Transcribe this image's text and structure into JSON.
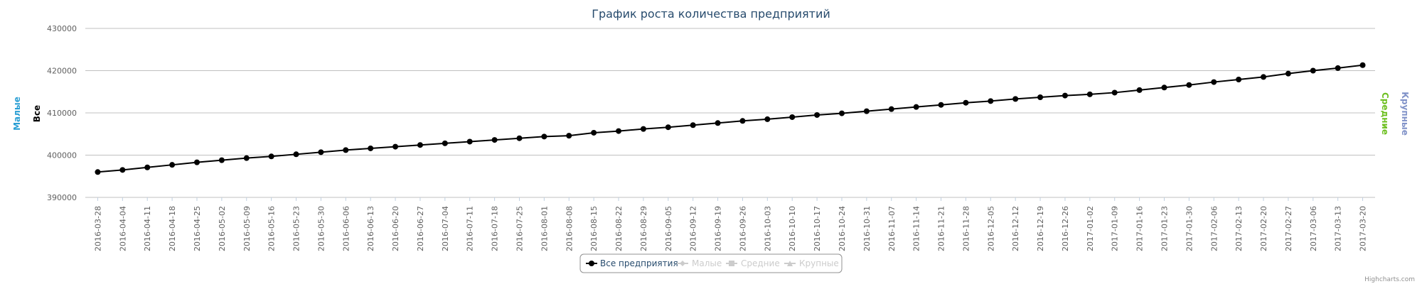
{
  "chart_data": {
    "type": "line",
    "title": "График роста количества предприятий",
    "y_axis_titles": {
      "left": [
        {
          "label": "Малые",
          "color": "#2b9fd4"
        },
        {
          "label": "Все",
          "color": "#000000"
        }
      ],
      "right": [
        {
          "label": "Средние",
          "color": "#6cbf1f"
        },
        {
          "label": "Крупные",
          "color": "#8092c8"
        }
      ]
    },
    "y_ticks": [
      "390000",
      "400000",
      "410000",
      "420000",
      "430000"
    ],
    "ylim": [
      390000,
      430000
    ],
    "grid": true,
    "categories": [
      "2016-03-28",
      "2016-04-04",
      "2016-04-11",
      "2016-04-18",
      "2016-04-25",
      "2016-05-02",
      "2016-05-09",
      "2016-05-16",
      "2016-05-23",
      "2016-05-30",
      "2016-06-06",
      "2016-06-13",
      "2016-06-20",
      "2016-06-27",
      "2016-07-04",
      "2016-07-11",
      "2016-07-18",
      "2016-07-25",
      "2016-08-01",
      "2016-08-08",
      "2016-08-15",
      "2016-08-22",
      "2016-08-29",
      "2016-09-05",
      "2016-09-12",
      "2016-09-19",
      "2016-09-26",
      "2016-10-03",
      "2016-10-10",
      "2016-10-17",
      "2016-10-24",
      "2016-10-31",
      "2016-11-07",
      "2016-11-14",
      "2016-11-21",
      "2016-11-28",
      "2016-12-05",
      "2016-12-12",
      "2016-12-19",
      "2016-12-26",
      "2017-01-02",
      "2017-01-09",
      "2017-01-16",
      "2017-01-23",
      "2017-01-30",
      "2017-02-06",
      "2017-02-13",
      "2017-02-20",
      "2017-02-27",
      "2017-03-06",
      "2017-03-13",
      "2017-03-20"
    ],
    "series": [
      {
        "name": "Все предприятия",
        "color": "#000000",
        "visible": true,
        "values": [
          396000,
          396500,
          397100,
          397700,
          398300,
          398800,
          399300,
          399700,
          400200,
          400700,
          401200,
          401600,
          402000,
          402400,
          402800,
          403200,
          403600,
          404000,
          404400,
          404600,
          405300,
          405700,
          406200,
          406600,
          407100,
          407600,
          408100,
          408500,
          409000,
          409500,
          409900,
          410400,
          410900,
          411400,
          411900,
          412400,
          412800,
          413300,
          413700,
          414100,
          414400,
          414800,
          415400,
          416000,
          416600,
          417300,
          417900,
          418500,
          419300,
          420000,
          420600,
          421300
        ]
      },
      {
        "name": "Малые",
        "color": "#cccccc",
        "visible": false,
        "marker": "diamond"
      },
      {
        "name": "Средние",
        "color": "#cccccc",
        "visible": false,
        "marker": "square"
      },
      {
        "name": "Крупные",
        "color": "#cccccc",
        "visible": false,
        "marker": "triangle"
      }
    ],
    "legend_placement": "bottom-center"
  },
  "credits": "Highcharts.com"
}
